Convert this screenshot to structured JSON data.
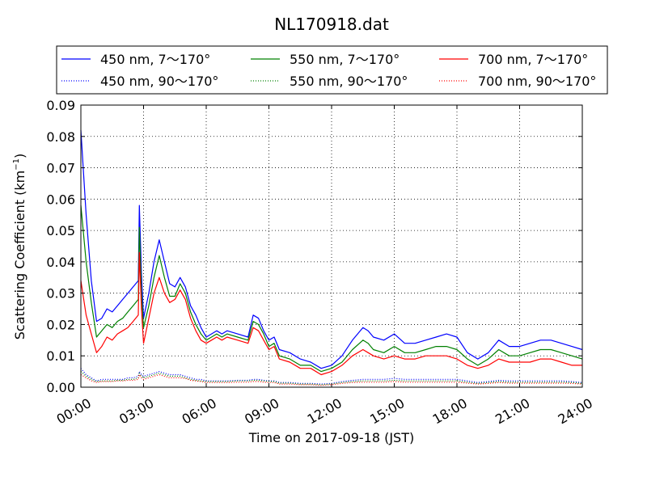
{
  "chart_data": {
    "type": "line",
    "title": "NL170918.dat",
    "xlabel": "Time on 2017-09-18 (JST)",
    "ylabel_main": "Scattering Coefficient (km",
    "ylabel_sup": "−1",
    "ylabel_close": ")",
    "xlim": [
      0,
      24
    ],
    "ylim": [
      0,
      0.09
    ],
    "x_ticks": [
      0,
      3,
      6,
      9,
      12,
      15,
      18,
      21,
      24
    ],
    "x_tick_labels": [
      "00:00",
      "03:00",
      "06:00",
      "09:00",
      "12:00",
      "15:00",
      "18:00",
      "21:00",
      "24:00"
    ],
    "y_ticks": [
      0,
      0.01,
      0.02,
      0.03,
      0.04,
      0.05,
      0.06,
      0.07,
      0.08,
      0.09
    ],
    "y_tick_labels": [
      "0.00",
      "0.01",
      "0.02",
      "0.03",
      "0.04",
      "0.05",
      "0.06",
      "0.07",
      "0.08",
      "0.09"
    ],
    "grid": true,
    "legend_position": "top",
    "x": [
      0.0,
      0.25,
      0.5,
      0.75,
      1.0,
      1.25,
      1.5,
      1.75,
      2.0,
      2.25,
      2.5,
      2.75,
      2.8,
      2.9,
      3.0,
      3.25,
      3.5,
      3.75,
      4.0,
      4.25,
      4.5,
      4.75,
      5.0,
      5.25,
      5.5,
      5.75,
      6.0,
      6.25,
      6.5,
      6.75,
      7.0,
      7.5,
      8.0,
      8.25,
      8.5,
      8.75,
      9.0,
      9.25,
      9.5,
      10.0,
      10.5,
      11.0,
      11.5,
      12.0,
      12.5,
      13.0,
      13.5,
      13.75,
      14.0,
      14.5,
      15.0,
      15.5,
      16.0,
      16.5,
      17.0,
      17.5,
      18.0,
      18.5,
      19.0,
      19.5,
      20.0,
      20.5,
      21.0,
      21.5,
      22.0,
      22.5,
      23.0,
      23.5,
      24.0
    ],
    "series": [
      {
        "name": "450 nm, 7～170°",
        "color": "#0000ff",
        "style": "solid",
        "values": [
          0.082,
          0.055,
          0.034,
          0.021,
          0.022,
          0.025,
          0.024,
          0.026,
          0.028,
          0.03,
          0.032,
          0.034,
          0.058,
          0.036,
          0.022,
          0.03,
          0.04,
          0.047,
          0.04,
          0.033,
          0.032,
          0.035,
          0.032,
          0.026,
          0.023,
          0.019,
          0.016,
          0.017,
          0.018,
          0.017,
          0.018,
          0.017,
          0.016,
          0.023,
          0.022,
          0.018,
          0.015,
          0.016,
          0.012,
          0.011,
          0.009,
          0.008,
          0.006,
          0.007,
          0.01,
          0.015,
          0.019,
          0.018,
          0.016,
          0.015,
          0.017,
          0.014,
          0.014,
          0.015,
          0.016,
          0.017,
          0.016,
          0.011,
          0.009,
          0.011,
          0.015,
          0.013,
          0.013,
          0.014,
          0.015,
          0.015,
          0.014,
          0.013,
          0.012
        ]
      },
      {
        "name": "550 nm, 7～170°",
        "color": "#008000",
        "style": "solid",
        "values": [
          0.058,
          0.04,
          0.027,
          0.016,
          0.018,
          0.02,
          0.019,
          0.021,
          0.022,
          0.024,
          0.026,
          0.028,
          0.051,
          0.03,
          0.019,
          0.026,
          0.035,
          0.042,
          0.035,
          0.029,
          0.029,
          0.033,
          0.03,
          0.024,
          0.02,
          0.017,
          0.015,
          0.016,
          0.017,
          0.016,
          0.017,
          0.016,
          0.015,
          0.021,
          0.02,
          0.017,
          0.013,
          0.014,
          0.01,
          0.009,
          0.007,
          0.007,
          0.005,
          0.006,
          0.008,
          0.012,
          0.015,
          0.014,
          0.012,
          0.011,
          0.013,
          0.011,
          0.011,
          0.012,
          0.013,
          0.013,
          0.012,
          0.009,
          0.007,
          0.009,
          0.012,
          0.01,
          0.01,
          0.011,
          0.012,
          0.012,
          0.011,
          0.01,
          0.009
        ]
      },
      {
        "name": "700 nm, 7～170°",
        "color": "#ff0000",
        "style": "solid",
        "values": [
          0.034,
          0.023,
          0.017,
          0.011,
          0.013,
          0.016,
          0.015,
          0.017,
          0.018,
          0.019,
          0.021,
          0.023,
          0.043,
          0.025,
          0.014,
          0.022,
          0.03,
          0.035,
          0.03,
          0.027,
          0.028,
          0.031,
          0.028,
          0.022,
          0.018,
          0.015,
          0.014,
          0.015,
          0.016,
          0.015,
          0.016,
          0.015,
          0.014,
          0.019,
          0.018,
          0.015,
          0.012,
          0.013,
          0.009,
          0.008,
          0.006,
          0.006,
          0.004,
          0.005,
          0.007,
          0.01,
          0.012,
          0.011,
          0.01,
          0.009,
          0.01,
          0.009,
          0.009,
          0.01,
          0.01,
          0.01,
          0.009,
          0.007,
          0.006,
          0.007,
          0.009,
          0.008,
          0.008,
          0.008,
          0.009,
          0.009,
          0.008,
          0.007,
          0.007
        ]
      },
      {
        "name": "450 nm, 90～170°",
        "color": "#0000ff",
        "style": "dotted",
        "values": [
          0.006,
          0.004,
          0.003,
          0.002,
          0.0025,
          0.0025,
          0.0025,
          0.0025,
          0.0025,
          0.003,
          0.003,
          0.0035,
          0.005,
          0.004,
          0.0035,
          0.004,
          0.0045,
          0.005,
          0.0045,
          0.004,
          0.004,
          0.004,
          0.0035,
          0.003,
          0.0025,
          0.0025,
          0.002,
          0.002,
          0.002,
          0.002,
          0.002,
          0.0022,
          0.0022,
          0.0025,
          0.0025,
          0.0022,
          0.002,
          0.002,
          0.0015,
          0.0015,
          0.0012,
          0.0012,
          0.001,
          0.0012,
          0.0018,
          0.0022,
          0.0025,
          0.0025,
          0.0025,
          0.0025,
          0.0028,
          0.0025,
          0.0025,
          0.0025,
          0.0025,
          0.0025,
          0.0025,
          0.002,
          0.0015,
          0.0018,
          0.0022,
          0.002,
          0.002,
          0.002,
          0.002,
          0.002,
          0.002,
          0.0018,
          0.0015
        ]
      },
      {
        "name": "550 nm, 90～170°",
        "color": "#008000",
        "style": "dotted",
        "values": [
          0.005,
          0.0035,
          0.0025,
          0.0018,
          0.002,
          0.002,
          0.002,
          0.0022,
          0.0022,
          0.0025,
          0.0025,
          0.003,
          0.0045,
          0.0035,
          0.003,
          0.0035,
          0.004,
          0.0045,
          0.004,
          0.0035,
          0.0035,
          0.0035,
          0.003,
          0.0025,
          0.0022,
          0.002,
          0.0018,
          0.0018,
          0.0018,
          0.0018,
          0.0018,
          0.002,
          0.002,
          0.0022,
          0.0022,
          0.002,
          0.0018,
          0.0018,
          0.0013,
          0.0013,
          0.001,
          0.001,
          0.0008,
          0.001,
          0.0015,
          0.0018,
          0.002,
          0.002,
          0.002,
          0.002,
          0.0022,
          0.002,
          0.002,
          0.002,
          0.002,
          0.002,
          0.002,
          0.0016,
          0.0012,
          0.0015,
          0.0018,
          0.0016,
          0.0016,
          0.0016,
          0.0016,
          0.0016,
          0.0016,
          0.0015,
          0.0012
        ]
      },
      {
        "name": "700 nm, 90～170°",
        "color": "#ff0000",
        "style": "dotted",
        "values": [
          0.004,
          0.003,
          0.002,
          0.0015,
          0.0018,
          0.0018,
          0.0018,
          0.002,
          0.002,
          0.0022,
          0.0022,
          0.0025,
          0.004,
          0.003,
          0.0025,
          0.003,
          0.0035,
          0.004,
          0.0035,
          0.003,
          0.003,
          0.003,
          0.0028,
          0.0022,
          0.002,
          0.0018,
          0.0015,
          0.0015,
          0.0015,
          0.0015,
          0.0015,
          0.0016,
          0.0016,
          0.0018,
          0.0018,
          0.0016,
          0.0015,
          0.0015,
          0.001,
          0.001,
          0.0008,
          0.0008,
          0.0006,
          0.0008,
          0.0012,
          0.0015,
          0.0016,
          0.0016,
          0.0016,
          0.0016,
          0.0018,
          0.0016,
          0.0016,
          0.0016,
          0.0016,
          0.0016,
          0.0016,
          0.0013,
          0.001,
          0.0012,
          0.0015,
          0.0013,
          0.0013,
          0.0013,
          0.0013,
          0.0013,
          0.0013,
          0.0012,
          0.001
        ]
      }
    ]
  }
}
